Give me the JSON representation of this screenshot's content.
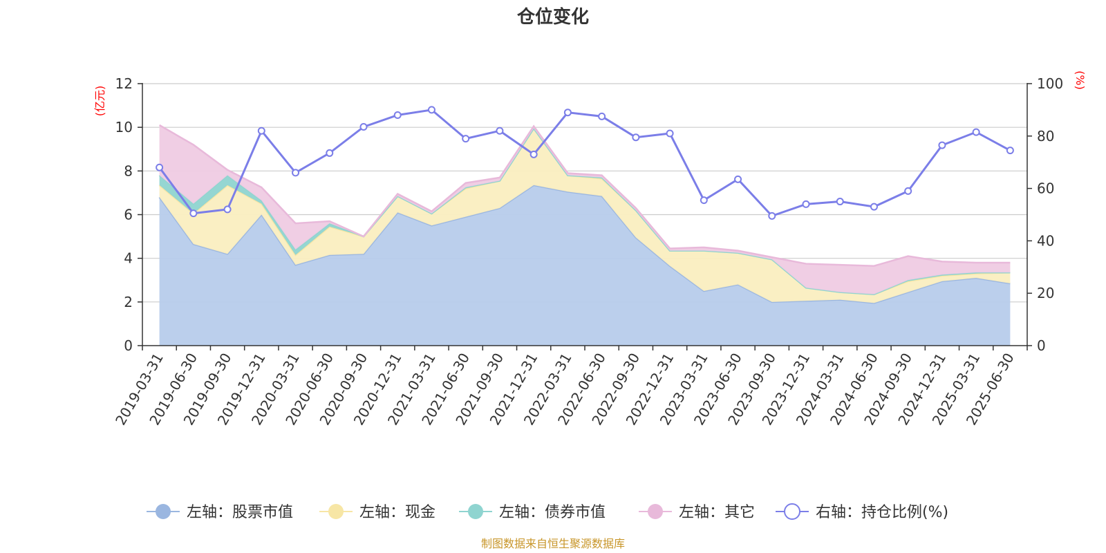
{
  "chart_data": {
    "type": "area",
    "title": "仓位变化",
    "y_left_unit": "(亿元)",
    "y_right_unit": "(%)",
    "y_left_lim": [
      0,
      12
    ],
    "y_left_ticks": [
      0,
      2,
      4,
      6,
      8,
      10,
      12
    ],
    "y_right_lim": [
      0,
      100
    ],
    "y_right_ticks": [
      0,
      20,
      40,
      60,
      80,
      100
    ],
    "grid": true,
    "legend_position": "bottom",
    "x": [
      "2019-03-31",
      "2019-06-30",
      "2019-09-30",
      "2019-12-31",
      "2020-03-31",
      "2020-06-30",
      "2020-09-30",
      "2020-12-31",
      "2021-03-31",
      "2021-06-30",
      "2021-09-30",
      "2021-12-31",
      "2022-03-31",
      "2022-06-30",
      "2022-09-30",
      "2022-12-31",
      "2023-03-31",
      "2023-06-30",
      "2023-09-30",
      "2023-12-31",
      "2024-03-31",
      "2024-06-30",
      "2024-09-30",
      "2024-12-31",
      "2025-03-31",
      "2025-06-30"
    ],
    "stacked_series": [
      {
        "name": "左轴：股票市值",
        "color": "#9ab6e0",
        "fill": "#b7cceb",
        "values": [
          6.8,
          4.65,
          4.2,
          6.0,
          3.7,
          4.15,
          4.2,
          6.1,
          5.5,
          5.9,
          6.3,
          7.35,
          7.05,
          6.85,
          4.95,
          3.65,
          2.5,
          2.8,
          2.0,
          2.05,
          2.1,
          1.95,
          2.45,
          2.95,
          3.1,
          2.85
        ]
      },
      {
        "name": "左轴：现金",
        "color": "#f7e6a5",
        "fill": "#faeec0",
        "values": [
          0.55,
          1.4,
          3.15,
          0.5,
          0.45,
          1.3,
          0.8,
          0.75,
          0.55,
          1.3,
          1.25,
          2.6,
          0.75,
          0.8,
          1.25,
          0.7,
          1.85,
          1.45,
          1.95,
          0.6,
          0.35,
          0.4,
          0.5,
          0.25,
          0.2,
          0.5
        ]
      },
      {
        "name": "左轴：债券市值",
        "color": "#8fd4d0",
        "fill": "#8fd4d0",
        "values": [
          0.45,
          0.45,
          0.45,
          0.15,
          0.25,
          0.15,
          0,
          0,
          0,
          0.05,
          0,
          0,
          0,
          0.05,
          0,
          0,
          0,
          0,
          0,
          0,
          0,
          0,
          0.05,
          0.05,
          0.05,
          0
        ]
      },
      {
        "name": "左轴：其它",
        "color": "#e8b9da",
        "fill": "#efcbe3",
        "values": [
          2.3,
          2.7,
          0.25,
          0.6,
          1.2,
          0.1,
          0,
          0.1,
          0.1,
          0.2,
          0.15,
          0.1,
          0.1,
          0.1,
          0.1,
          0.1,
          0.15,
          0.1,
          0.1,
          1.1,
          1.25,
          1.3,
          1.1,
          0.6,
          0.45,
          0.45
        ]
      }
    ],
    "line_series": {
      "name": "右轴：持仓比例(%)",
      "color": "#7b7ee8",
      "values": [
        68,
        50.5,
        52,
        82,
        66,
        73.5,
        83.5,
        88,
        90,
        79,
        82,
        73,
        89,
        87.5,
        79.5,
        81,
        55.5,
        63.5,
        49.5,
        54,
        55,
        53,
        59,
        76.5,
        81.5,
        74.5
      ]
    }
  },
  "source_note": "制图数据来自恒生聚源数据库"
}
